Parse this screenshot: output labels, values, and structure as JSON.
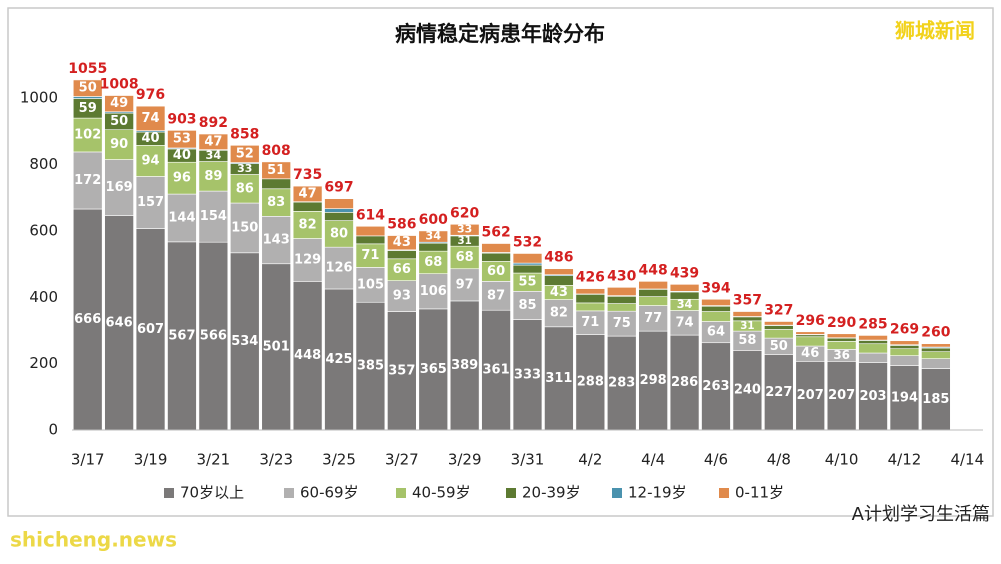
{
  "chart_data": {
    "type": "stacked-bar",
    "title": "病情稳定病患年龄分布",
    "categories": [
      "3/17",
      null,
      "3/19",
      null,
      "3/21",
      null,
      "3/23",
      null,
      "3/25",
      null,
      "3/27",
      null,
      "3/29",
      null,
      "3/31",
      null,
      "4/2",
      null,
      "4/4",
      null,
      "4/6",
      null,
      "4/8",
      null,
      "4/10",
      null,
      "4/12",
      null,
      "4/14"
    ],
    "series": [
      {
        "name": "70岁以上",
        "color": "#7b7979",
        "values": [
          666,
          646,
          607,
          567,
          566,
          534,
          501,
          448,
          425,
          385,
          357,
          365,
          389,
          361,
          333,
          311,
          288,
          283,
          298,
          286,
          263,
          240,
          227,
          207,
          207,
          203,
          194,
          185,
          null
        ]
      },
      {
        "name": "60-69岁",
        "color": "#b1b0b0",
        "values": [
          172,
          169,
          157,
          144,
          154,
          150,
          143,
          129,
          126,
          105,
          93,
          106,
          97,
          87,
          85,
          82,
          71,
          75,
          77,
          74,
          64,
          58,
          50,
          46,
          36,
          29,
          30,
          30,
          null
        ]
      },
      {
        "name": "40-59岁",
        "color": "#a6c36a",
        "values": [
          102,
          90,
          94,
          96,
          89,
          86,
          83,
          82,
          80,
          71,
          66,
          68,
          68,
          60,
          55,
          43,
          24,
          23,
          27,
          34,
          30,
          31,
          26,
          28,
          24,
          28,
          21,
          21,
          null
        ]
      },
      {
        "name": "20-39岁",
        "color": "#5d7a32",
        "values": [
          59,
          50,
          40,
          40,
          34,
          33,
          30,
          28,
          25,
          24,
          25,
          24,
          31,
          25,
          24,
          29,
          26,
          22,
          22,
          22,
          16,
          12,
          12,
          6,
          10,
          10,
          10,
          11,
          null
        ]
      },
      {
        "name": "12-19岁",
        "color": "#4a92ae",
        "values": [
          6,
          4,
          4,
          3,
          2,
          3,
          0,
          1,
          11,
          0,
          2,
          3,
          2,
          2,
          6,
          3,
          1,
          2,
          1,
          2,
          2,
          1,
          1,
          1,
          1,
          1,
          2,
          3,
          null
        ]
      },
      {
        "name": "0-11岁",
        "color": "#e08a4c",
        "values": [
          50,
          49,
          74,
          53,
          47,
          52,
          51,
          47,
          30,
          29,
          43,
          34,
          33,
          27,
          29,
          18,
          16,
          25,
          23,
          21,
          19,
          15,
          11,
          8,
          12,
          14,
          12,
          10,
          null
        ]
      }
    ],
    "totals": [
      1055,
      1008,
      976,
      903,
      892,
      858,
      808,
      735,
      697,
      614,
      586,
      600,
      620,
      562,
      532,
      486,
      426,
      430,
      448,
      439,
      394,
      357,
      327,
      296,
      290,
      285,
      269,
      260,
      null
    ],
    "totals_color": "#d42020",
    "ylim": [
      0,
      1100
    ],
    "yticks": [
      0,
      200,
      400,
      600,
      800,
      1000
    ],
    "grid": false,
    "legend": "bottom"
  },
  "watermarks": [
    "狮城新闻",
    "shicheng.news",
    "A计划学习生活篇"
  ]
}
